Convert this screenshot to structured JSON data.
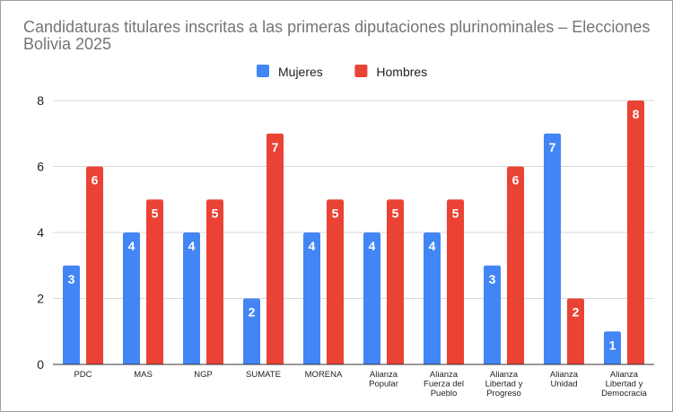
{
  "chart_data": {
    "type": "bar",
    "title": "Candidaturas titulares inscritas a las primeras diputaciones plurinominales – Elecciones Bolivia 2025",
    "categories": [
      [
        "PDC"
      ],
      [
        "MAS"
      ],
      [
        "NGP"
      ],
      [
        "SUMATE"
      ],
      [
        "MORENA"
      ],
      [
        "Alianza",
        "Popular"
      ],
      [
        "Alianza",
        "Fuerza del",
        "Pueblo"
      ],
      [
        "Alianza",
        "Libertad y",
        "Progreso"
      ],
      [
        "Alianza",
        "Unidad"
      ],
      [
        "Alianza",
        "Libertad y",
        "Democracia"
      ]
    ],
    "series": [
      {
        "name": "Mujeres",
        "color": "#4285f4",
        "values": [
          3,
          4,
          4,
          2,
          4,
          4,
          4,
          3,
          7,
          1
        ]
      },
      {
        "name": "Hombres",
        "color": "#ea4335",
        "values": [
          6,
          5,
          5,
          7,
          5,
          5,
          5,
          6,
          2,
          8
        ]
      }
    ],
    "ylim": [
      0,
      8
    ],
    "yticks": [
      0,
      2,
      4,
      6,
      8
    ],
    "grid": true,
    "legend_position": "top",
    "data_labels": true
  }
}
